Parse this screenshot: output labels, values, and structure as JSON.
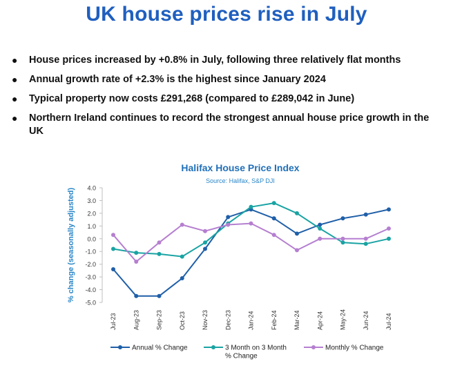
{
  "headline": "UK house prices rise in July",
  "bullets": [
    "House prices increased by +0.8% in July, following three relatively flat months",
    "Annual growth rate of +2.3% is the highest since January 2024",
    "Typical property now costs £291,268 (compared to £289,042 in June)",
    "Northern Ireland continues to record the strongest annual house price growth in the UK"
  ],
  "colors": {
    "headline": "#1f5fbf",
    "annual": "#1f5fa8",
    "three_month": "#1aa3a3",
    "monthly": "#b57fd0"
  },
  "chart_data": {
    "type": "line",
    "title": "Halifax House Price Index",
    "subtitle": "Source: Halifax, S&P DJI",
    "ylabel": "% change (seasonally adjusted)",
    "xlabel": "",
    "ylim": [
      -5.0,
      4.0
    ],
    "yticks": [
      "4.0",
      "3.0",
      "2.0",
      "1.0",
      "0.0",
      "-1.0",
      "-2.0",
      "-3.0",
      "-4.0",
      "-5.0"
    ],
    "categories": [
      "Jul-23",
      "Aug-23",
      "Sep-23",
      "Oct-23",
      "Nov-23",
      "Dec-23",
      "Jan-24",
      "Feb-24",
      "Mar-24",
      "Apr-24",
      "May-24",
      "Jun-24",
      "Jul-24"
    ],
    "series": [
      {
        "name": "Annual % Change",
        "values": [
          -2.4,
          -4.5,
          -4.5,
          -3.1,
          -0.8,
          1.7,
          2.3,
          1.6,
          0.4,
          1.1,
          1.6,
          1.9,
          2.3
        ]
      },
      {
        "name": "3 Month on 3 Month % Change",
        "legend_lines": [
          "3 Month on 3 Month",
          "% Change"
        ],
        "values": [
          -0.8,
          -1.1,
          -1.2,
          -1.4,
          -0.3,
          1.2,
          2.5,
          2.8,
          2.0,
          0.8,
          -0.3,
          -0.4,
          0.0
        ]
      },
      {
        "name": "Monthly % Change",
        "values": [
          0.3,
          -1.8,
          -0.3,
          1.1,
          0.6,
          1.1,
          1.2,
          0.3,
          -0.9,
          0.0,
          0.0,
          0.0,
          0.8
        ]
      }
    ],
    "legend_position": "bottom",
    "grid": false
  }
}
